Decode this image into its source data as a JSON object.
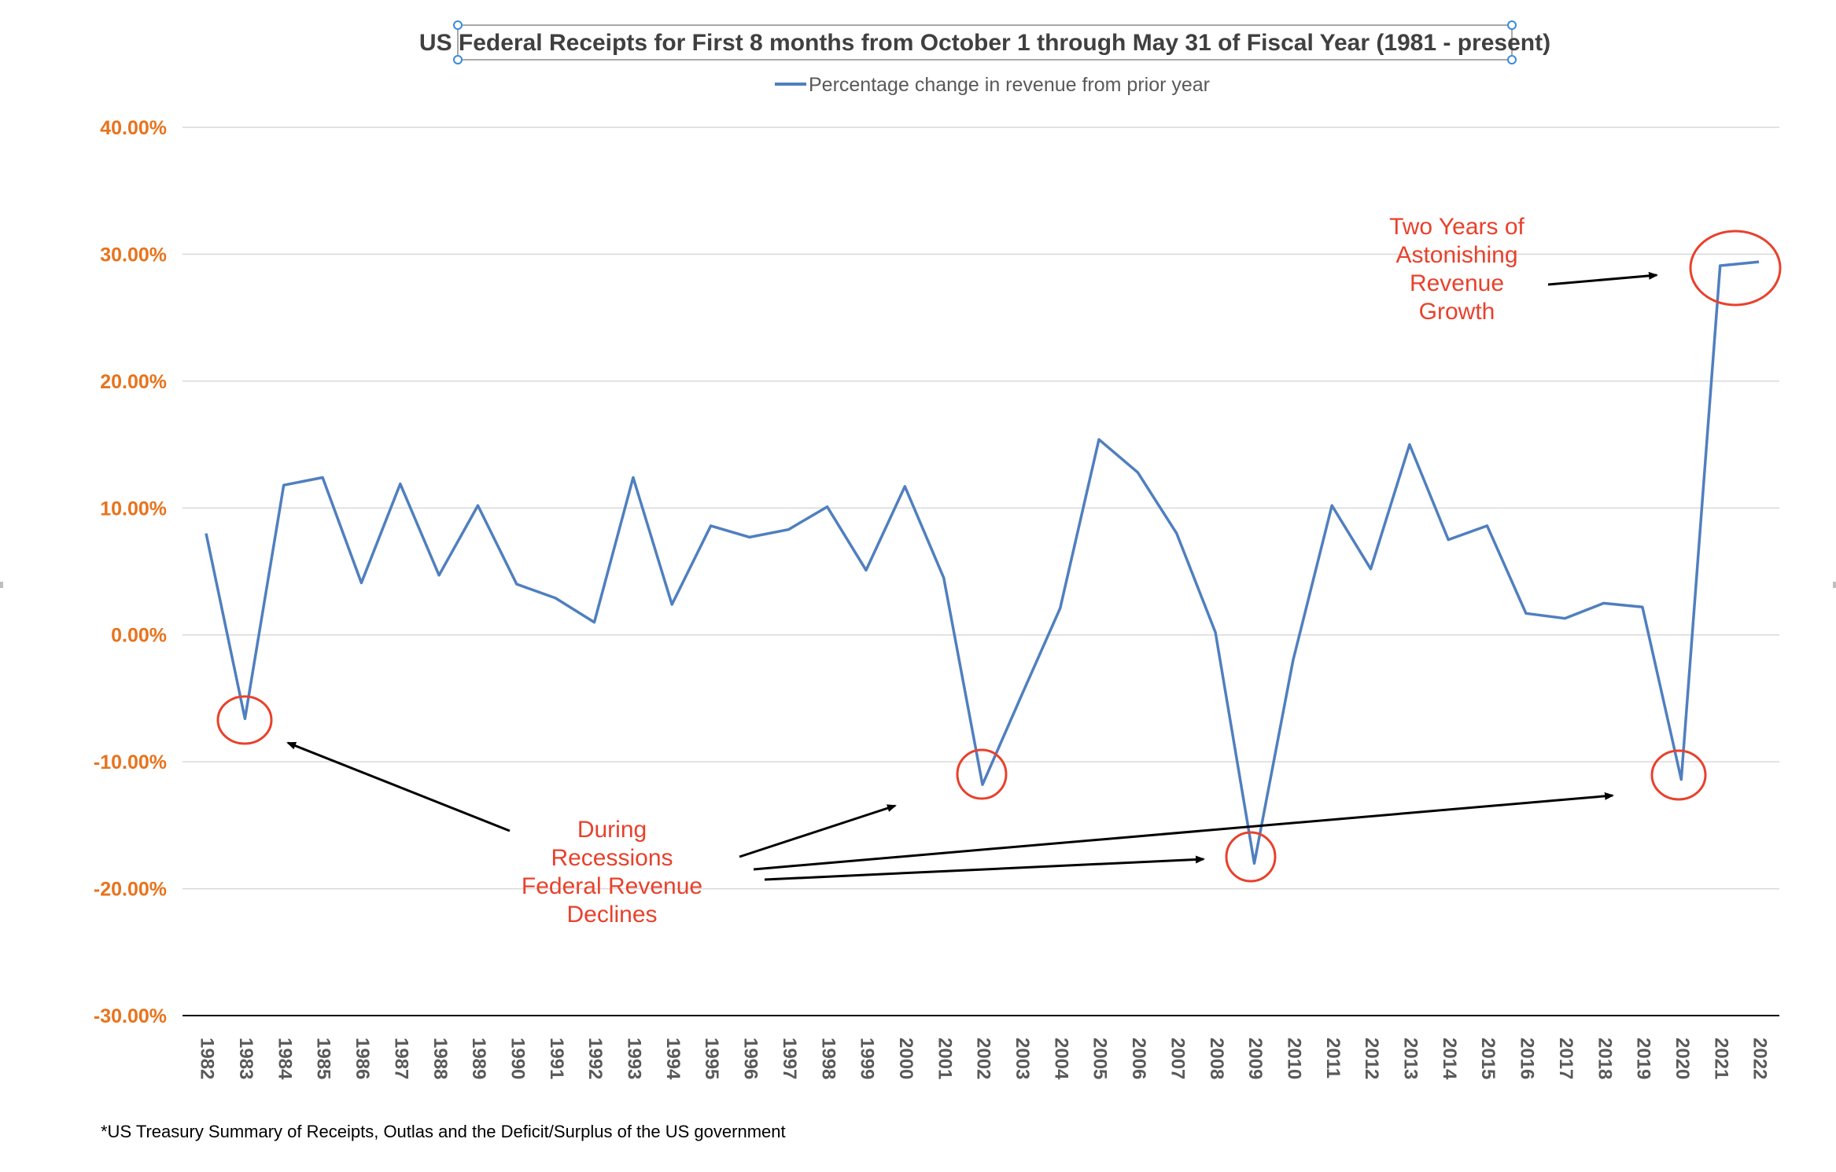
{
  "chart_data": {
    "type": "line",
    "title": "US Federal Receipts for First 8 months from October 1 through May 31 of Fiscal Year (1981 - present)",
    "legend": "Percentage change in revenue from prior year",
    "legend_position": "top",
    "series": [
      {
        "name": "Percentage change in revenue from prior year",
        "color": "#4f7fbf",
        "values": [
          8.0,
          -6.6,
          11.8,
          12.4,
          4.1,
          11.9,
          4.7,
          10.2,
          4.0,
          2.9,
          1.0,
          12.4,
          2.4,
          8.6,
          7.7,
          8.3,
          10.1,
          5.1,
          11.7,
          4.5,
          -11.8,
          -4.8,
          2.1,
          15.4,
          12.8,
          8.0,
          0.2,
          -18.0,
          -2.0,
          10.2,
          5.2,
          15.0,
          7.5,
          8.6,
          1.7,
          1.3,
          2.5,
          2.2,
          -11.4,
          29.1,
          29.4
        ]
      }
    ],
    "x": [
      "1982",
      "1983",
      "1984",
      "1985",
      "1986",
      "1987",
      "1988",
      "1989",
      "1990",
      "1991",
      "1992",
      "1993",
      "1994",
      "1995",
      "1996",
      "1997",
      "1998",
      "1999",
      "2000",
      "2001",
      "2002",
      "2003",
      "2004",
      "2005",
      "2006",
      "2007",
      "2008",
      "2009",
      "2010",
      "2011",
      "2012",
      "2013",
      "2014",
      "2015",
      "2016",
      "2017",
      "2018",
      "2019",
      "2020",
      "2021",
      "2022"
    ],
    "y_ticks": [
      {
        "value": 40,
        "label": "40.00%"
      },
      {
        "value": 30,
        "label": "30.00%"
      },
      {
        "value": 20,
        "label": "20.00%"
      },
      {
        "value": 10,
        "label": "10.00%"
      },
      {
        "value": 0,
        "label": "0.00%"
      },
      {
        "value": -10,
        "label": "-10.00%"
      },
      {
        "value": -20,
        "label": "-20.00%"
      },
      {
        "value": -30,
        "label": "-30.00%"
      }
    ],
    "ylim": [
      -30,
      40
    ],
    "grid": true,
    "xlabel": "",
    "ylabel": "",
    "highlighted_points": [
      "1983",
      "2002",
      "2009",
      "2020",
      "2021-2022"
    ],
    "annotations": [
      {
        "lines": [
          "Two Years of",
          "Astonishing",
          "Revenue",
          "Growth"
        ],
        "color": "#e8412c"
      },
      {
        "lines": [
          "During",
          "Recessions",
          "Federal Revenue",
          "Declines"
        ],
        "color": "#e8412c"
      }
    ]
  },
  "footnote": "*US Treasury Summary of Receipts, Outlas and the Deficit/Surplus of the US government",
  "colors": {
    "line": "#4f7fbf",
    "ytick": "#e8731c",
    "annotation": "#e8412c",
    "gridline": "#d9d9d9",
    "axis": "#000000",
    "arrow": "#000000"
  }
}
